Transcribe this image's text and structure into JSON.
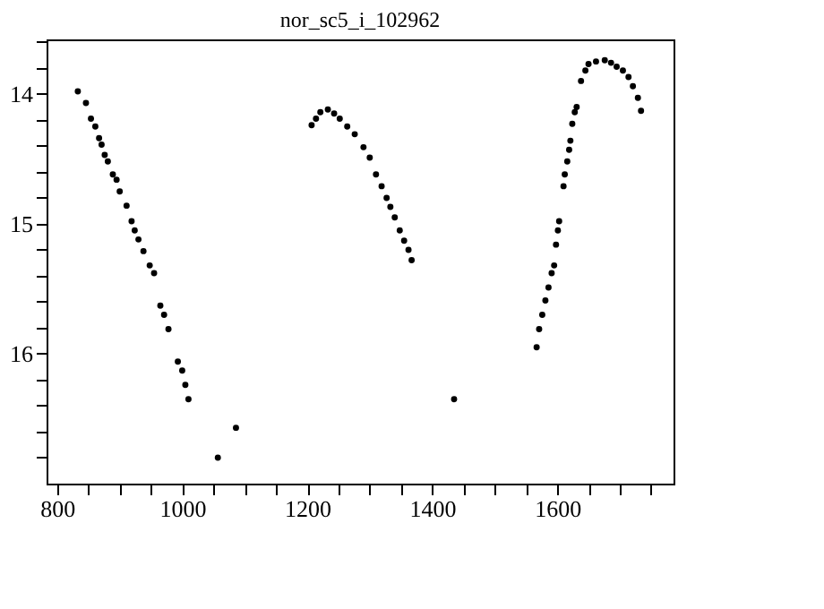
{
  "chart_data": {
    "type": "scatter",
    "title": "nor_sc5_i_102962",
    "x": [
      833,
      846,
      854,
      861,
      867,
      871,
      876,
      881,
      889,
      895,
      900,
      911,
      919,
      924,
      930,
      938,
      948,
      955,
      965,
      971,
      978,
      993,
      1000,
      1005,
      1010,
      1057,
      1086,
      1207,
      1214,
      1221,
      1233,
      1243,
      1252,
      1264,
      1276,
      1290,
      1300,
      1310,
      1319,
      1327,
      1333,
      1340,
      1348,
      1355,
      1362,
      1367,
      1435,
      1567,
      1571,
      1576,
      1581,
      1586,
      1591,
      1595,
      1598,
      1601,
      1603,
      1610,
      1612,
      1616,
      1619,
      1621,
      1624,
      1628,
      1631,
      1638,
      1645,
      1650,
      1662,
      1676,
      1686,
      1695,
      1705,
      1714,
      1721,
      1729,
      1734
    ],
    "series": [
      {
        "color": "#000000",
        "values": [
          13.98,
          14.07,
          14.19,
          14.25,
          14.34,
          14.39,
          14.47,
          14.52,
          14.62,
          14.66,
          14.75,
          14.86,
          14.98,
          15.05,
          15.12,
          15.21,
          15.32,
          15.38,
          15.63,
          15.7,
          15.81,
          16.06,
          16.13,
          16.24,
          16.35,
          16.8,
          16.57,
          14.24,
          14.19,
          14.14,
          14.12,
          14.15,
          14.19,
          14.25,
          14.31,
          14.41,
          14.49,
          14.62,
          14.71,
          14.8,
          14.87,
          14.95,
          15.05,
          15.13,
          15.2,
          15.28,
          16.35,
          15.95,
          15.81,
          15.7,
          15.59,
          15.49,
          15.38,
          15.32,
          15.16,
          15.05,
          14.98,
          14.71,
          14.62,
          14.52,
          14.43,
          14.36,
          14.23,
          14.14,
          14.1,
          13.9,
          13.82,
          13.77,
          13.75,
          13.74,
          13.76,
          13.79,
          13.82,
          13.87,
          13.94,
          14.03,
          14.13
        ]
      }
    ],
    "xlim": [
      783,
      1786
    ],
    "ylim": [
      17.0,
      13.58
    ],
    "xticks": [
      800,
      {
        "value": 850,
        "label": null
      },
      {
        "value": 900,
        "label": null
      },
      {
        "value": 950,
        "label": null
      },
      1000,
      {
        "value": 1050,
        "label": null
      },
      {
        "value": 1100,
        "label": null
      },
      {
        "value": 1150,
        "label": null
      },
      1200,
      {
        "value": 1250,
        "label": null
      },
      {
        "value": 1300,
        "label": null
      },
      {
        "value": 1350,
        "label": null
      },
      1400,
      {
        "value": 1450,
        "label": null
      },
      {
        "value": 1500,
        "label": null
      },
      {
        "value": 1550,
        "label": null
      },
      1600,
      {
        "value": 1650,
        "label": null
      },
      {
        "value": 1700,
        "label": null
      },
      {
        "value": 1750,
        "label": null
      }
    ],
    "yticks": [
      {
        "value": 13.6,
        "label": null
      },
      {
        "value": 13.8,
        "label": null
      },
      14,
      {
        "value": 14.2,
        "label": null
      },
      {
        "value": 14.4,
        "label": null
      },
      {
        "value": 14.6,
        "label": null
      },
      {
        "value": 14.8,
        "label": null
      },
      15,
      {
        "value": 15.2,
        "label": null
      },
      {
        "value": 15.4,
        "label": null
      },
      {
        "value": 15.6,
        "label": null
      },
      {
        "value": 15.8,
        "label": null
      },
      16,
      {
        "value": 16.2,
        "label": null
      },
      {
        "value": 16.4,
        "label": null
      },
      {
        "value": 16.6,
        "label": null
      },
      {
        "value": 16.8,
        "label": null
      }
    ],
    "grid": false,
    "marker": "circle"
  }
}
